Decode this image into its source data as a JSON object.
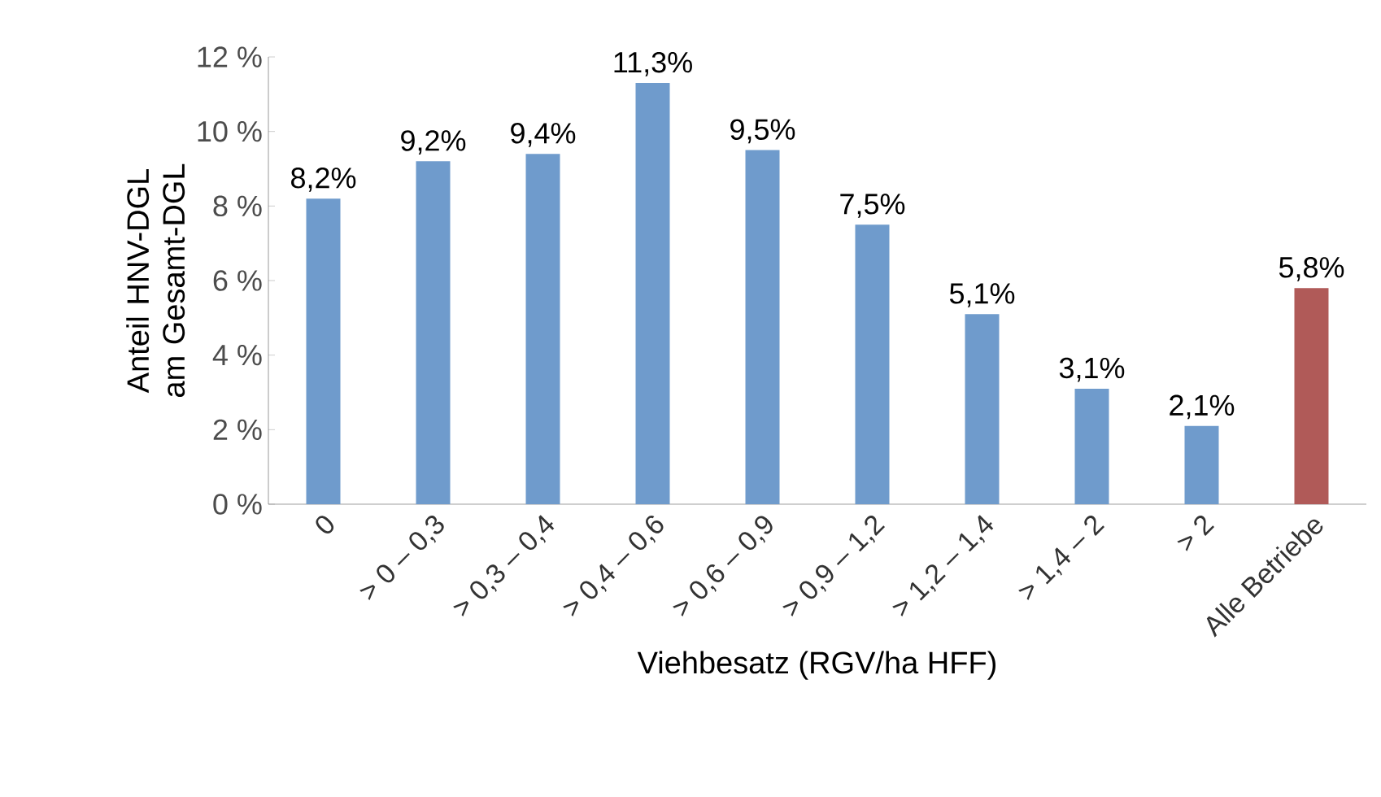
{
  "chart_data": {
    "type": "bar",
    "xlabel": "Viehbesatz (RGV/ha HFF)",
    "ylabel": "Anteil HNV-DGL am Gesamt-DGL",
    "categories": [
      "0",
      "> 0 – 0,3",
      "> 0,3 – 0,4",
      "> 0,4 – 0,6",
      "> 0,6 – 0,9",
      "> 0,9 – 1,2",
      "> 1,2 – 1,4",
      "> 1,4 – 2",
      "> 2",
      "Alle Betriebe"
    ],
    "values": [
      8.2,
      9.2,
      9.4,
      11.3,
      9.5,
      7.5,
      5.1,
      3.1,
      2.1,
      5.8
    ],
    "value_labels": [
      "8,2%",
      "9,2%",
      "9,4%",
      "11,3%",
      "9,5%",
      "7,5%",
      "5,1%",
      "3,1%",
      "2,1%",
      "5,8%"
    ],
    "colors": [
      "#6f9bcc",
      "#6f9bcc",
      "#6f9bcc",
      "#6f9bcc",
      "#6f9bcc",
      "#6f9bcc",
      "#6f9bcc",
      "#6f9bcc",
      "#6f9bcc",
      "#b05a58"
    ],
    "ylim": [
      0,
      12
    ],
    "yticks": [
      {
        "value": 0,
        "label": "0 %"
      },
      {
        "value": 2,
        "label": "2 %"
      },
      {
        "value": 4,
        "label": "4 %"
      },
      {
        "value": 6,
        "label": "6 %"
      },
      {
        "value": 8,
        "label": "8 %"
      },
      {
        "value": 10,
        "label": "10 %"
      },
      {
        "value": 12,
        "label": "12 %"
      }
    ]
  }
}
